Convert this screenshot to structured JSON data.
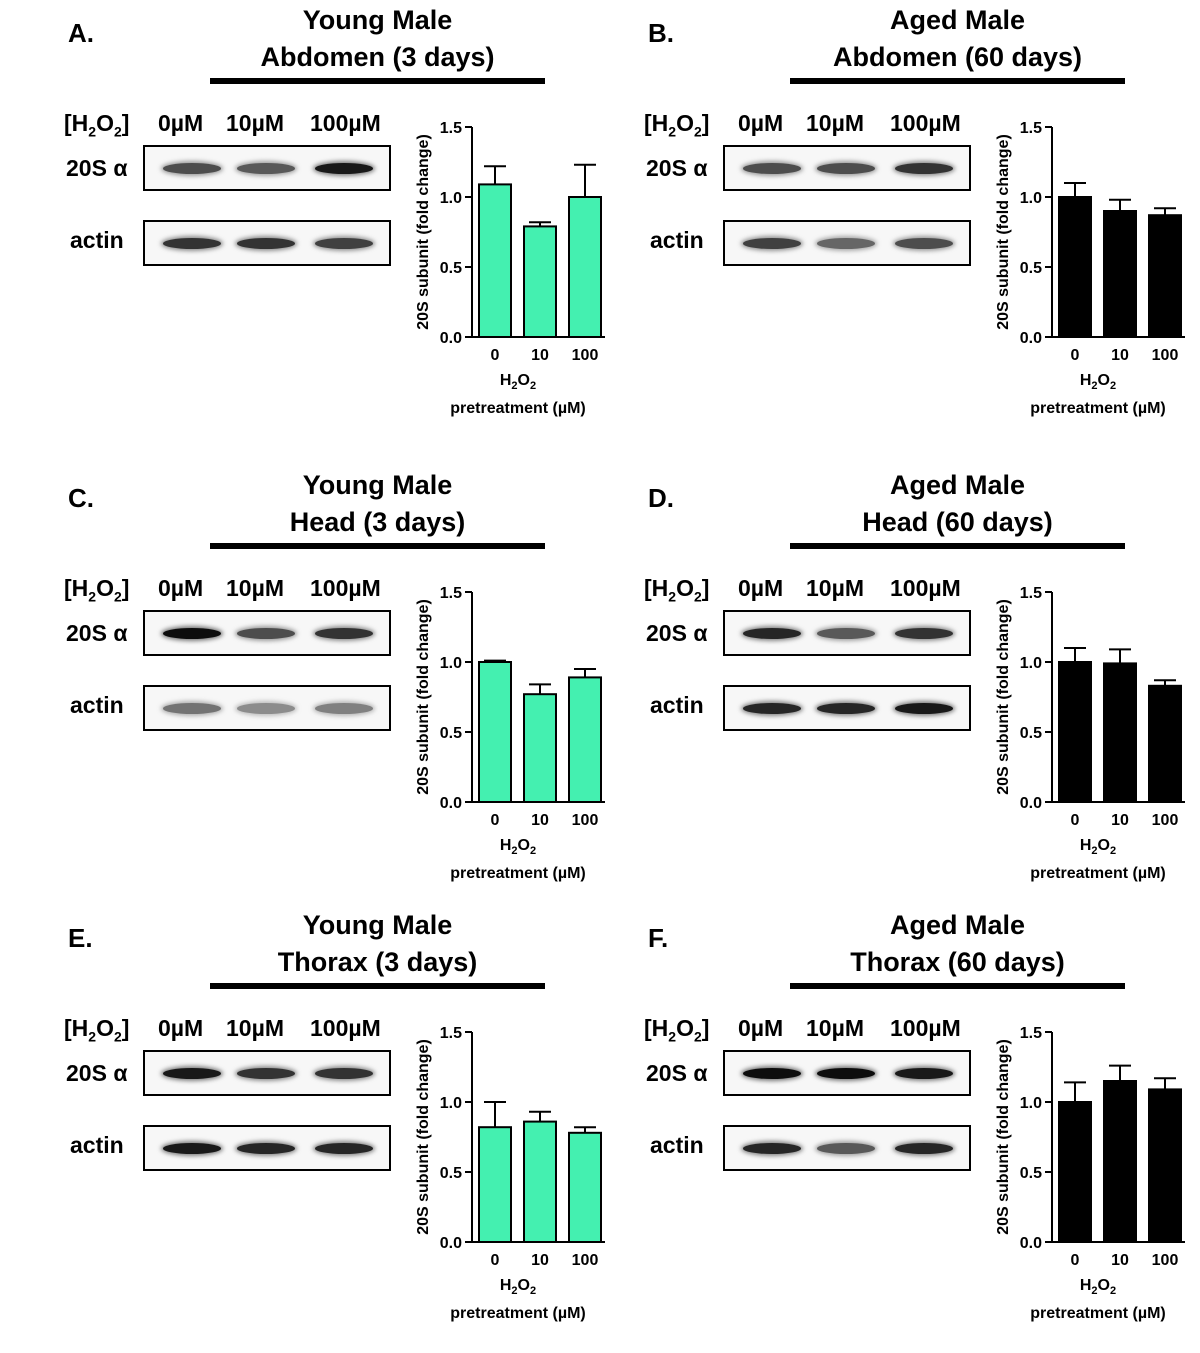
{
  "blot_header": {
    "h2o2_prefix": "[H",
    "h2o2_sub1": "2",
    "h2o2_mid": "O",
    "h2o2_sub2": "2",
    "h2o2_suffix": "]",
    "lanes": [
      "0µM",
      "10µM",
      "100µM"
    ]
  },
  "row_labels": {
    "subunit": "20S α",
    "actin": "actin"
  },
  "panels": [
    {
      "letter": "A.",
      "title_line1": "Young Male",
      "title_line2": "Abdomen (3 days)",
      "blot_subunit_intensity": [
        0.7,
        0.65,
        0.9
      ],
      "blot_actin_intensity": [
        0.8,
        0.8,
        0.75
      ]
    },
    {
      "letter": "B.",
      "title_line1": "Aged Male",
      "title_line2": "Abdomen (60 days)",
      "blot_subunit_intensity": [
        0.7,
        0.7,
        0.8
      ],
      "blot_actin_intensity": [
        0.75,
        0.6,
        0.7
      ]
    },
    {
      "letter": "C.",
      "title_line1": "Young Male",
      "title_line2": "Head (3 days)",
      "blot_subunit_intensity": [
        0.95,
        0.7,
        0.8
      ],
      "blot_actin_intensity": [
        0.55,
        0.45,
        0.5
      ]
    },
    {
      "letter": "D.",
      "title_line1": "Aged Male",
      "title_line2": "Head (60 days)",
      "blot_subunit_intensity": [
        0.85,
        0.65,
        0.8
      ],
      "blot_actin_intensity": [
        0.85,
        0.85,
        0.9
      ]
    },
    {
      "letter": "E.",
      "title_line1": "Young Male",
      "title_line2": "Thorax (3 days)",
      "blot_subunit_intensity": [
        0.9,
        0.8,
        0.8
      ],
      "blot_actin_intensity": [
        0.9,
        0.85,
        0.85
      ]
    },
    {
      "letter": "F.",
      "title_line1": "Aged Male",
      "title_line2": "Thorax (60 days)",
      "blot_subunit_intensity": [
        0.95,
        0.95,
        0.9
      ],
      "blot_actin_intensity": [
        0.85,
        0.65,
        0.85
      ]
    }
  ],
  "colors": {
    "young": "#44f0b0",
    "aged": "#000000"
  },
  "chart_data": [
    {
      "type": "bar",
      "categories": [
        "0",
        "10",
        "100"
      ],
      "values": [
        1.09,
        0.79,
        1.0
      ],
      "errors": [
        0.13,
        0.03,
        0.23
      ],
      "ylabel": "20S subunit (fold change)",
      "xlabel": "H2O2 pretreatment (µM)",
      "ylim": [
        0,
        1.5
      ],
      "yticks": [
        "0.0",
        "0.5",
        "1.0",
        "1.5"
      ],
      "color": "#44f0b0"
    },
    {
      "type": "bar",
      "categories": [
        "0",
        "10",
        "100"
      ],
      "values": [
        1.0,
        0.9,
        0.87
      ],
      "errors": [
        0.1,
        0.08,
        0.05
      ],
      "ylabel": "20S subunit (fold change)",
      "xlabel": "H2O2 pretreatment (µM)",
      "ylim": [
        0,
        1.5
      ],
      "yticks": [
        "0.0",
        "0.5",
        "1.0",
        "1.5"
      ],
      "color": "#000000"
    },
    {
      "type": "bar",
      "categories": [
        "0",
        "10",
        "100"
      ],
      "values": [
        1.0,
        0.77,
        0.89
      ],
      "errors": [
        0.01,
        0.07,
        0.06
      ],
      "ylabel": "20S subunit (fold change)",
      "xlabel": "H2O2 pretreatment (µM)",
      "ylim": [
        0,
        1.5
      ],
      "yticks": [
        "0.0",
        "0.5",
        "1.0",
        "1.5"
      ],
      "color": "#44f0b0"
    },
    {
      "type": "bar",
      "categories": [
        "0",
        "10",
        "100"
      ],
      "values": [
        1.0,
        0.99,
        0.83
      ],
      "errors": [
        0.1,
        0.1,
        0.04
      ],
      "ylabel": "20S subunit (fold change)",
      "xlabel": "H2O2 pretreatment (µM)",
      "ylim": [
        0,
        1.5
      ],
      "yticks": [
        "0.0",
        "0.5",
        "1.0",
        "1.5"
      ],
      "color": "#000000"
    },
    {
      "type": "bar",
      "categories": [
        "0",
        "10",
        "100"
      ],
      "values": [
        0.82,
        0.86,
        0.78
      ],
      "errors": [
        0.18,
        0.07,
        0.04
      ],
      "ylabel": "20S subunit (fold change)",
      "xlabel": "H2O2 pretreatment (µM)",
      "ylim": [
        0,
        1.5
      ],
      "yticks": [
        "0.0",
        "0.5",
        "1.0",
        "1.5"
      ],
      "color": "#44f0b0"
    },
    {
      "type": "bar",
      "categories": [
        "0",
        "10",
        "100"
      ],
      "values": [
        1.0,
        1.15,
        1.09
      ],
      "errors": [
        0.14,
        0.11,
        0.08
      ],
      "ylabel": "20S subunit (fold change)",
      "xlabel": "H2O2 pretreatment (µM)",
      "ylim": [
        0,
        1.5
      ],
      "yticks": [
        "0.0",
        "0.5",
        "1.0",
        "1.5"
      ],
      "color": "#000000"
    }
  ]
}
